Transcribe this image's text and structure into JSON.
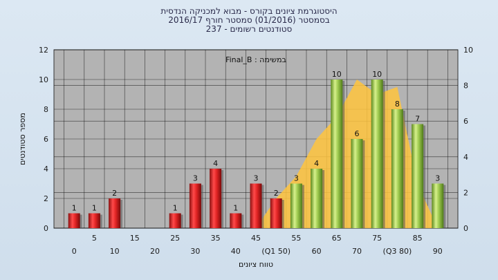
{
  "title": {
    "line1": "היסטוגרמת ציונים בקורס - מבוא למכניקה הנדסית",
    "line2": "בסמסטר  (01/2016)  סמסטר חורף 2016/17",
    "line3": "סטודנטים רשומים - 237"
  },
  "chart_data": {
    "type": "bar",
    "annotation": "במשימה : Final_B",
    "xlabel": "טווח ציונים",
    "ylabel": "מספר סטודנטים",
    "ylim": [
      0,
      12
    ],
    "y2lim": [
      0,
      10
    ],
    "yticks": [
      0,
      2,
      4,
      6,
      8,
      10,
      12
    ],
    "y2ticks": [
      0,
      2,
      4,
      6,
      8,
      10
    ],
    "grid": true,
    "colors": {
      "red": "#d62828",
      "green": "#8cba46",
      "area": "#ffc43d",
      "plot_bg": "#b3b3b3"
    },
    "categories": [
      "0",
      "5",
      "10",
      "15",
      "20",
      "25",
      "30",
      "35",
      "40",
      "45",
      "50",
      "55",
      "60",
      "65",
      "70",
      "75",
      "80",
      "85",
      "90"
    ],
    "x_tick_row_top": [
      "",
      "5",
      "",
      "15",
      "",
      "25",
      "",
      "35",
      "",
      "45",
      "",
      "55",
      "",
      "65",
      "",
      "75",
      "",
      "85",
      ""
    ],
    "x_tick_row_bottom": [
      "0",
      "",
      "10",
      "",
      "20",
      "",
      "30",
      "",
      "40",
      "",
      "(Q1 50)",
      "",
      "60",
      "",
      "70",
      "",
      "(Q3 80)",
      "",
      "90"
    ],
    "values": [
      1,
      1,
      2,
      0,
      0,
      1,
      3,
      4,
      1,
      3,
      2,
      3,
      4,
      10,
      6,
      10,
      8,
      7,
      3
    ],
    "bar_labels": [
      "1",
      "1",
      "2",
      "",
      "",
      "1",
      "3",
      "4",
      "1",
      "3",
      "2",
      "3",
      "4",
      "10",
      "6",
      "10",
      "8",
      "7",
      "3"
    ],
    "bar_color": [
      "red",
      "red",
      "red",
      "red",
      "red",
      "red",
      "red",
      "red",
      "red",
      "red",
      "red",
      "green",
      "green",
      "green",
      "green",
      "green",
      "green",
      "green",
      "green"
    ],
    "area_series": [
      0,
      0,
      0,
      0,
      0,
      0,
      0,
      0,
      0,
      0,
      2,
      3.5,
      6,
      7.5,
      10,
      9,
      9.5,
      3,
      0
    ]
  }
}
